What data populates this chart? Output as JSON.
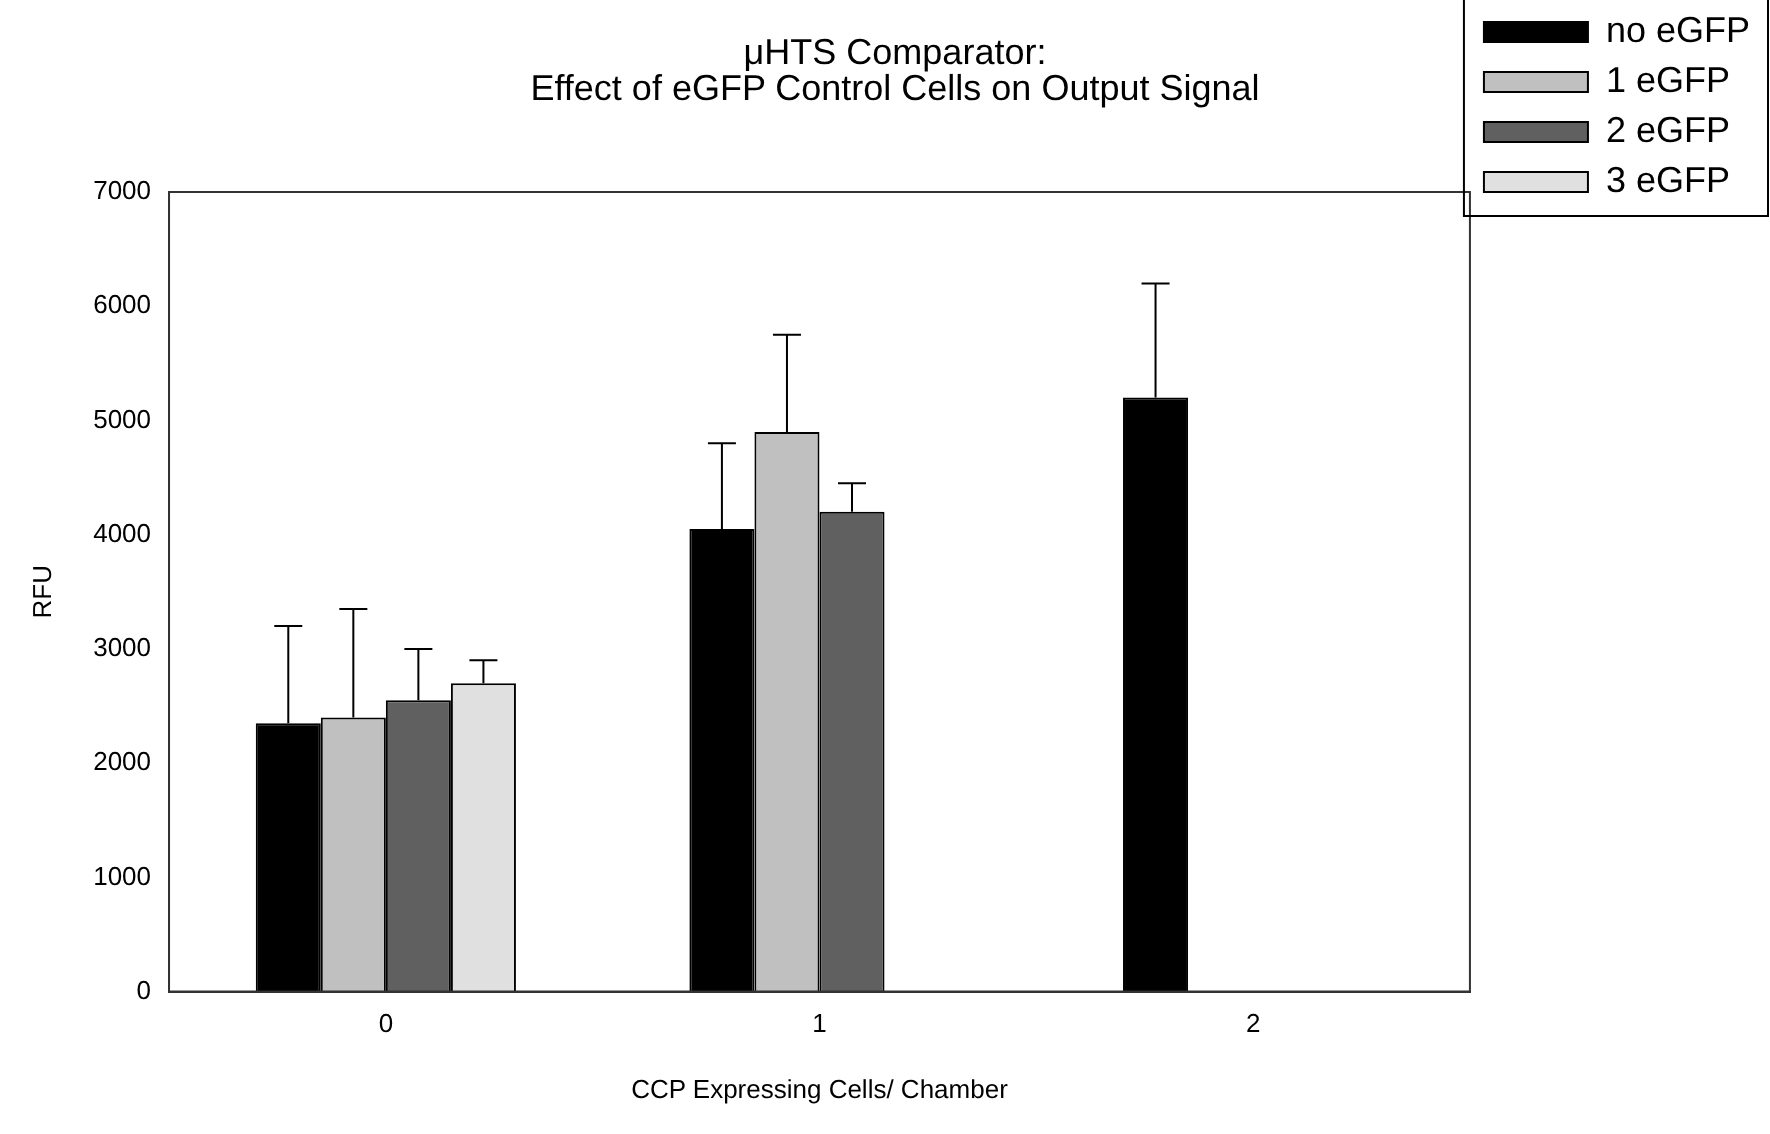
{
  "chart_data": {
    "type": "bar",
    "title": "μHTS Comparator:\nEffect of eGFP Control Cells on Output Signal",
    "xlabel": "CCP Expressing Cells/ Chamber",
    "ylabel": "RFU",
    "categories": [
      "0",
      "1",
      "2"
    ],
    "series": [
      {
        "name": "no eGFP",
        "color": "#000000",
        "values": [
          2350,
          4050,
          5200
        ],
        "errors": [
          [
            2350,
            3200
          ],
          [
            4050,
            4800
          ],
          [
            5200,
            6200
          ]
        ]
      },
      {
        "name": "1 eGFP",
        "color": "#c0c0c0",
        "values": [
          2400,
          4900,
          null
        ],
        "errors": [
          [
            2400,
            3350
          ],
          [
            4900,
            5750
          ],
          null
        ]
      },
      {
        "name": "2 eGFP",
        "color": "#606060",
        "values": [
          2550,
          4200,
          null
        ],
        "errors": [
          [
            2550,
            3000
          ],
          [
            4200,
            4450
          ],
          null
        ]
      },
      {
        "name": "3 eGFP",
        "color": "#e0e0e0",
        "values": [
          2700,
          null,
          null
        ],
        "errors": [
          [
            2700,
            2900
          ],
          null,
          null
        ]
      }
    ],
    "ylim": [
      0,
      7000
    ],
    "yticks": [
      0,
      1000,
      2000,
      3000,
      4000,
      5000,
      6000,
      7000
    ],
    "grid": false,
    "legend": "top right"
  }
}
